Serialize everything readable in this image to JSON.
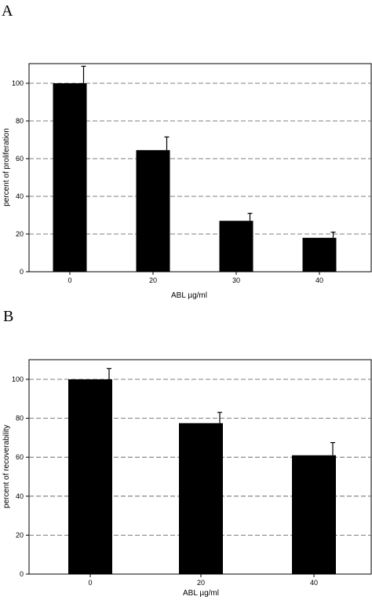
{
  "chart_data": [
    {
      "type": "bar",
      "panel_label": "A",
      "categories": [
        "0",
        "20",
        "30",
        "40"
      ],
      "values": [
        100,
        64.5,
        27,
        18
      ],
      "error": [
        9,
        7,
        4,
        3
      ],
      "xlabel": "ABL µg/ml",
      "ylabel": "percent of proliferation",
      "ylim": [
        0,
        100
      ],
      "yticks": [
        "0",
        "20",
        "40",
        "60",
        "80",
        "100"
      ],
      "grid": true,
      "bar_color": "#000000"
    },
    {
      "type": "bar",
      "panel_label": "B",
      "categories": [
        "0",
        "20",
        "40"
      ],
      "values": [
        100,
        77.5,
        61
      ],
      "error": [
        5.5,
        5.5,
        6.5
      ],
      "xlabel": "ABL µg/ml",
      "ylabel": "percent of recoverability",
      "ylim": [
        0,
        100
      ],
      "yticks": [
        "0",
        "20",
        "40",
        "60",
        "80",
        "100"
      ],
      "grid": true,
      "bar_color": "#000000"
    }
  ]
}
